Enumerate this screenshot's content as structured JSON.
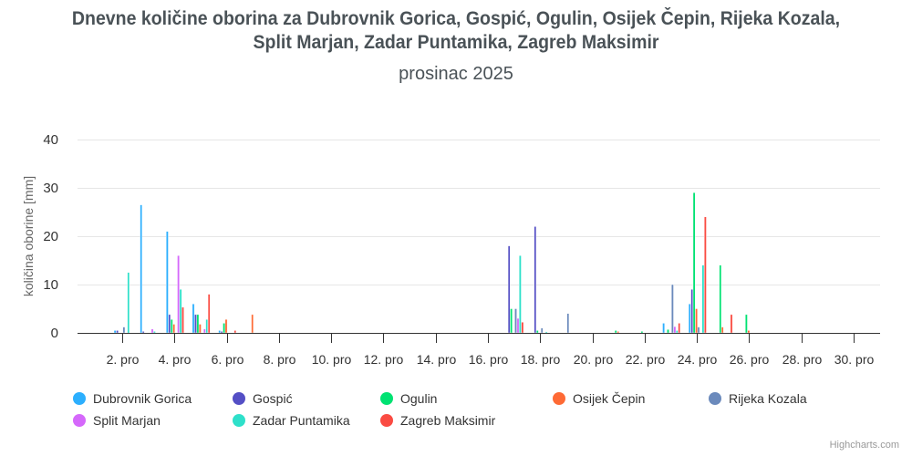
{
  "header": {
    "title": "Dnevne količine oborina za Dubrovnik Gorica, Gospić, Ogulin, Osijek Čepin, Rijeka Kozala, Split Marjan, Zadar Puntamika, Zagreb Maksimir",
    "title_line1": "Dnevne količine oborina za Dubrovnik Gorica, Gospić, Ogulin, Osijek Čepin, Rijeka Kozala,",
    "title_line2": "Split Marjan, Zadar Puntamika, Zagreb Maksimir",
    "subtitle": "prosinac 2025"
  },
  "axes": {
    "ylabel": "količina oborine [mm]",
    "yticks": [
      "0",
      "10",
      "20",
      "30",
      "40"
    ],
    "xticks": [
      "2. pro",
      "4. pro",
      "6. pro",
      "8. pro",
      "10. pro",
      "12. pro",
      "14. pro",
      "16. pro",
      "18. pro",
      "20. pro",
      "22. pro",
      "24. pro",
      "26. pro",
      "28. pro",
      "30. pro"
    ]
  },
  "legend": [
    {
      "name": "Dubrovnik Gorica",
      "color": "#2caffe"
    },
    {
      "name": "Gospić",
      "color": "#544fc5"
    },
    {
      "name": "Ogulin",
      "color": "#00e272"
    },
    {
      "name": "Osijek Čepin",
      "color": "#fe6a35"
    },
    {
      "name": "Rijeka Kozala",
      "color": "#6b8abc"
    },
    {
      "name": "Split Marjan",
      "color": "#d568fb"
    },
    {
      "name": "Zadar Puntamika",
      "color": "#2ee0ca"
    },
    {
      "name": "Zagreb Maksimir",
      "color": "#fa4b42"
    }
  ],
  "credits": "Highcharts.com",
  "chart_data": {
    "type": "bar",
    "title": "Dnevne količine oborina za Dubrovnik Gorica, Gospić, Ogulin, Osijek Čepin, Rijeka Kozala, Split Marjan, Zadar Puntamika, Zagreb Maksimir",
    "subtitle": "prosinac 2025",
    "xlabel": "",
    "ylabel": "količina oborine [mm]",
    "ylim": [
      0,
      40
    ],
    "grid": true,
    "legend_position": "bottom",
    "categories": [
      "1. pro",
      "2. pro",
      "3. pro",
      "4. pro",
      "5. pro",
      "6. pro",
      "7. pro",
      "8. pro",
      "9. pro",
      "10. pro",
      "11. pro",
      "12. pro",
      "13. pro",
      "14. pro",
      "15. pro",
      "16. pro",
      "17. pro",
      "18. pro",
      "19. pro",
      "20. pro",
      "21. pro",
      "22. pro",
      "23. pro",
      "24. pro",
      "25. pro",
      "26. pro",
      "27. pro",
      "28. pro",
      "29. pro",
      "30. pro",
      "31. pro"
    ],
    "series": [
      {
        "name": "Dubrovnik Gorica",
        "values": [
          0,
          0.5,
          26.5,
          21,
          6,
          0.5,
          0,
          0,
          0,
          0,
          0,
          0,
          0,
          0,
          0,
          0,
          0,
          0,
          0,
          0,
          0,
          0,
          2,
          6,
          0,
          0,
          0,
          0,
          0,
          0,
          0
        ]
      },
      {
        "name": "Gospić",
        "values": [
          0,
          0.5,
          0.3,
          3.8,
          3.8,
          0.3,
          0,
          0,
          0,
          0,
          0,
          0,
          0,
          0,
          0,
          0,
          18,
          22,
          0,
          0,
          0,
          0,
          0,
          9,
          0,
          0,
          0,
          0,
          0,
          0,
          0
        ]
      },
      {
        "name": "Ogulin",
        "values": [
          0,
          0,
          0,
          2.8,
          3.8,
          2,
          0,
          0,
          0,
          0,
          0,
          0,
          0,
          0,
          0,
          0,
          5,
          0.5,
          0,
          0,
          0.5,
          0.3,
          0.7,
          29,
          14,
          3.8,
          0,
          0,
          0,
          0,
          0
        ]
      },
      {
        "name": "Osijek Čepin",
        "values": [
          0,
          0,
          0,
          1.8,
          1.8,
          2.8,
          3.8,
          0,
          0,
          0,
          0,
          0,
          0,
          0,
          0,
          0,
          0,
          0,
          0,
          0,
          0.3,
          0,
          0,
          5,
          1.2,
          0.5,
          0,
          0,
          0,
          0,
          0
        ]
      },
      {
        "name": "Rijeka Kozala",
        "values": [
          0,
          1.2,
          0,
          0,
          0,
          0,
          0,
          0,
          0,
          0,
          0,
          0,
          0,
          0,
          0,
          0,
          5,
          1,
          4,
          0,
          0,
          0,
          10,
          1.2,
          0,
          0,
          0,
          0,
          0,
          0,
          0
        ]
      },
      {
        "name": "Split Marjan",
        "values": [
          0,
          0,
          0.8,
          16,
          0.8,
          0,
          0,
          0,
          0,
          0,
          0,
          0,
          0,
          0,
          0,
          0,
          3,
          0,
          0,
          0,
          0,
          0,
          1.3,
          0,
          0,
          0,
          0,
          0,
          0,
          0,
          0
        ]
      },
      {
        "name": "Zadar Puntamika",
        "values": [
          0,
          12.5,
          0.3,
          9,
          2.8,
          0,
          0,
          0,
          0,
          0,
          0,
          0,
          0,
          0,
          0,
          0,
          16,
          0.2,
          0,
          0,
          0,
          0,
          0.5,
          14,
          0,
          0,
          0,
          0,
          0,
          0,
          0
        ]
      },
      {
        "name": "Zagreb Maksimir",
        "values": [
          0,
          0,
          0,
          5.3,
          8,
          0.5,
          0,
          0,
          0,
          0,
          0,
          0,
          0,
          0,
          0,
          0,
          2.2,
          0,
          0,
          0,
          0,
          0,
          2,
          24,
          3.8,
          0,
          0,
          0,
          0,
          0,
          0
        ]
      }
    ]
  }
}
